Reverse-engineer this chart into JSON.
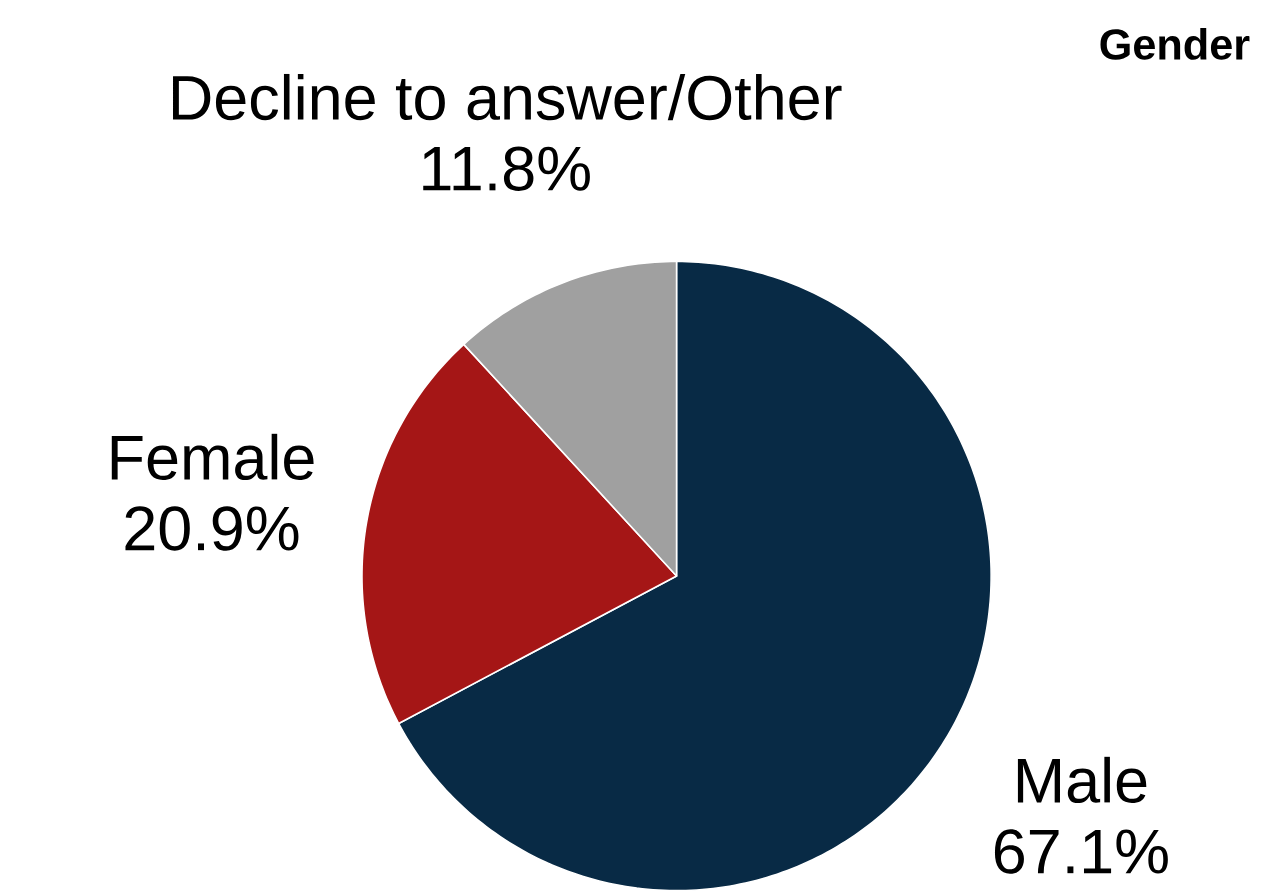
{
  "chart_data": {
    "type": "pie",
    "title": "Gender",
    "categories": [
      "Male",
      "Female",
      "Decline to answer/Other"
    ],
    "values": [
      67.1,
      20.9,
      11.8
    ],
    "value_labels": [
      "67.1%",
      "20.9%",
      "11.8%"
    ],
    "colors": [
      "#082a45",
      "#a51616",
      "#a0a0a0"
    ]
  }
}
